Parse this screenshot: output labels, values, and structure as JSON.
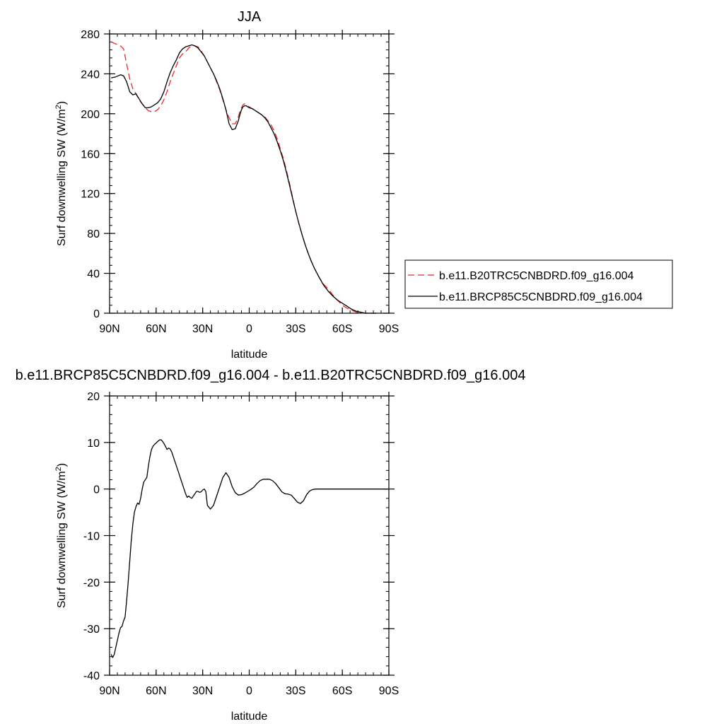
{
  "chart_data": [
    {
      "type": "line",
      "title": "JJA",
      "xlabel": "latitude",
      "ylabel": "Surf downwelling SW (W/m",
      "ylabel_sup": "2",
      "ylabel_close": ")",
      "xlim": [
        90,
        -90
      ],
      "ylim": [
        0,
        280
      ],
      "xticks": [
        90,
        60,
        30,
        0,
        -30,
        -60,
        -90
      ],
      "xtick_labels": [
        "90N",
        "60N",
        "30N",
        "0",
        "30S",
        "60S",
        "90S"
      ],
      "yticks": [
        0,
        40,
        80,
        120,
        160,
        200,
        240,
        280
      ],
      "ytick_labels": [
        "0",
        "40",
        "80",
        "120",
        "160",
        "200",
        "240",
        "280"
      ],
      "legend_position": "right",
      "series": [
        {
          "name": "b.e11.B20TRC5CNBDRD.f09_g16.004",
          "color": "#e8272a",
          "dash": "dashed",
          "x": [
            89,
            86,
            83,
            81,
            79,
            77,
            75,
            73,
            71,
            69,
            67,
            65,
            63,
            61,
            59,
            57,
            55,
            53,
            51,
            49,
            47,
            45,
            43,
            41,
            39,
            37,
            35,
            33,
            31,
            29,
            27,
            25,
            23,
            21,
            19,
            17,
            15,
            13,
            11,
            9,
            7,
            6,
            5,
            4,
            3,
            2,
            1,
            0,
            -2,
            -4,
            -6,
            -8,
            -10,
            -12,
            -14,
            -16,
            -18,
            -20,
            -22,
            -24,
            -26,
            -28,
            -30,
            -32,
            -34,
            -36,
            -38,
            -40,
            -42,
            -45,
            -48,
            -51,
            -54,
            -57,
            -60,
            -63,
            -66,
            -69,
            -72,
            -75,
            -78,
            -80,
            -82
          ],
          "y": [
            272,
            270,
            268,
            265,
            250,
            235,
            225,
            220,
            214,
            210,
            206,
            203,
            202,
            202,
            204,
            208,
            214,
            222,
            232,
            240,
            248,
            256,
            260,
            262,
            266,
            268,
            268,
            267,
            263,
            258,
            252,
            246,
            240,
            232,
            224,
            214,
            204,
            196,
            190,
            190,
            197,
            202,
            206,
            209,
            210,
            209,
            208,
            207,
            205,
            203,
            201,
            199,
            197,
            193,
            189,
            183,
            175,
            165,
            155,
            143,
            130,
            116,
            102,
            90,
            79,
            69,
            60,
            52,
            45,
            36,
            29,
            24,
            18,
            13,
            8,
            5,
            3,
            1,
            0,
            0,
            0,
            0,
            0
          ]
        },
        {
          "name": "b.e11.BRCP85C5CNBDRD.f09_g16.004",
          "color": "#000000",
          "dash": "solid",
          "x": [
            89,
            86,
            83,
            81,
            79,
            77,
            75,
            73,
            71,
            69,
            67,
            65,
            63,
            61,
            59,
            57,
            55,
            53,
            51,
            49,
            47,
            45,
            43,
            41,
            39,
            37,
            35,
            33,
            31,
            29,
            27,
            25,
            23,
            21,
            19,
            17,
            15,
            13,
            11,
            9,
            7,
            6,
            5,
            4,
            3,
            2,
            1,
            0,
            -2,
            -4,
            -6,
            -8,
            -10,
            -12,
            -14,
            -16,
            -18,
            -20,
            -22,
            -24,
            -26,
            -28,
            -30,
            -32,
            -34,
            -36,
            -38,
            -40,
            -42,
            -45,
            -48,
            -51,
            -54,
            -57,
            -60,
            -63,
            -66,
            -69,
            -72,
            -75,
            -78,
            -80,
            -82
          ],
          "y": [
            236,
            237,
            239,
            238,
            232,
            222,
            219,
            220,
            215,
            210,
            206,
            206,
            207,
            209,
            211,
            215,
            222,
            232,
            241,
            248,
            254,
            261,
            265,
            267,
            268,
            269,
            268,
            266,
            262,
            258,
            252,
            246,
            240,
            233,
            225,
            215,
            204,
            190,
            184,
            185,
            193,
            199,
            204,
            207,
            208,
            208,
            207,
            206,
            205,
            203,
            201,
            199,
            196,
            192,
            186,
            180,
            172,
            163,
            153,
            141,
            128,
            115,
            102,
            90,
            79,
            69,
            60,
            52,
            45,
            36,
            28,
            22,
            17,
            13,
            10,
            7,
            4,
            2,
            1,
            0,
            0,
            0,
            0
          ]
        }
      ]
    },
    {
      "type": "line",
      "title": "b.e11.BRCP85C5CNBDRD.f09_g16.004 - b.e11.B20TRC5CNBDRD.f09_g16.004",
      "xlabel": "latitude",
      "ylabel": "Surf downwelling SW (W/m",
      "ylabel_sup": "2",
      "ylabel_close": ")",
      "xlim": [
        90,
        -90
      ],
      "ylim": [
        -40,
        20
      ],
      "xticks": [
        90,
        60,
        30,
        0,
        -30,
        -60,
        -90
      ],
      "xtick_labels": [
        "90N",
        "60N",
        "30N",
        "0",
        "30S",
        "60S",
        "90S"
      ],
      "yticks": [
        -40,
        -30,
        -20,
        -10,
        0,
        10,
        20
      ],
      "ytick_labels": [
        "-40",
        "-30",
        "-20",
        "-10",
        "0",
        "10",
        "20"
      ],
      "series": [
        {
          "color": "#000000",
          "dash": "solid",
          "x": [
            89,
            88,
            87,
            86,
            85,
            84,
            83,
            82,
            81,
            80,
            79,
            78,
            77,
            76,
            75,
            74,
            73,
            72,
            71,
            70,
            69,
            68,
            67,
            66,
            65,
            64,
            63,
            62,
            61,
            60,
            59,
            58,
            57,
            56,
            55,
            54,
            53,
            52,
            51,
            50,
            49,
            48,
            47,
            46,
            45,
            44,
            43,
            42,
            41,
            40,
            39,
            38,
            37,
            36,
            35,
            34,
            33,
            32,
            31,
            30,
            29,
            28,
            27,
            25,
            23,
            21,
            19,
            17,
            15,
            13,
            11,
            9,
            7,
            5,
            3,
            1,
            -1,
            -3,
            -5,
            -7,
            -9,
            -11,
            -13,
            -15,
            -17,
            -19,
            -21,
            -23,
            -25,
            -27,
            -29,
            -31,
            -33,
            -35,
            -37,
            -39,
            -41,
            -43,
            -45,
            -47,
            -49,
            -51,
            -53,
            -55,
            -57,
            -59,
            -61,
            -63,
            -65,
            -67,
            -69,
            -71,
            -73,
            -75,
            -77,
            -80,
            -83,
            -86,
            -89
          ],
          "y": [
            -35.5,
            -36.2,
            -35.5,
            -34,
            -32.5,
            -31,
            -29.8,
            -29.5,
            -28.3,
            -27.5,
            -24,
            -20,
            -15.5,
            -11,
            -7.5,
            -5,
            -3.8,
            -3,
            -3.3,
            -2,
            0,
            1.5,
            2,
            2.5,
            5,
            7,
            8.5,
            9.2,
            9.6,
            9.9,
            10.2,
            10.5,
            10.6,
            10.3,
            9.8,
            9.2,
            8.5,
            8.8,
            8.6,
            8,
            7,
            6,
            5,
            4,
            3,
            2,
            1,
            0,
            -1,
            -1.8,
            -1.5,
            -1.8,
            -2,
            -1.5,
            -1,
            -0.5,
            -0.5,
            -0.7,
            -0.6,
            -0.2,
            0,
            -0.5,
            -3.5,
            -4.3,
            -3.5,
            -1.5,
            0.5,
            2.5,
            3.5,
            2.5,
            0.5,
            -0.8,
            -1.3,
            -1.2,
            -0.9,
            -0.5,
            -0.1,
            0.4,
            1.2,
            1.8,
            2.1,
            2.1,
            2.1,
            1.8,
            1.2,
            0.3,
            -0.6,
            -1.0,
            -1.1,
            -1.3,
            -2.0,
            -2.8,
            -3.1,
            -2.5,
            -1.2,
            -0.4,
            -0.1,
            0,
            0,
            0,
            0,
            0,
            0,
            0,
            0,
            0,
            0,
            0,
            0,
            0,
            0,
            0,
            0,
            0,
            0,
            0,
            0,
            0,
            0
          ]
        }
      ]
    }
  ]
}
